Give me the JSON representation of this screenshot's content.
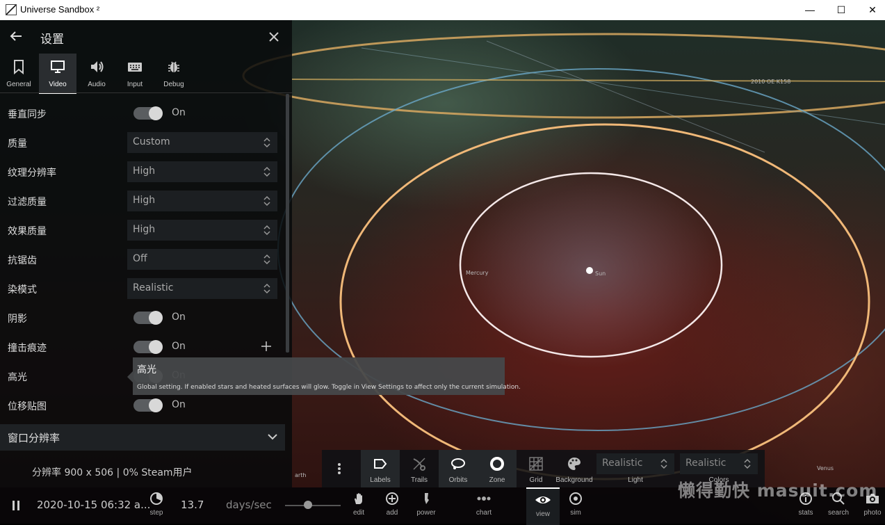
{
  "window": {
    "title": "Universe Sandbox ²",
    "minimize": "—",
    "maximize": "☐",
    "close": "✕"
  },
  "panel": {
    "title": "设置",
    "tabs": [
      {
        "label": "General",
        "icon": "bookmark-icon"
      },
      {
        "label": "Video",
        "icon": "monitor-icon"
      },
      {
        "label": "Audio",
        "icon": "speaker-icon"
      },
      {
        "label": "Input",
        "icon": "keyboard-icon"
      },
      {
        "label": "Debug",
        "icon": "bug-icon"
      }
    ],
    "active_tab": "Video",
    "settings": [
      {
        "label": "垂直同步",
        "type": "toggle",
        "value": "On"
      },
      {
        "label": "质量",
        "type": "select",
        "value": "Custom"
      },
      {
        "label": "纹理分辨率",
        "type": "select",
        "value": "High"
      },
      {
        "label": "过滤质量",
        "type": "select",
        "value": "High"
      },
      {
        "label": "效果质量",
        "type": "select",
        "value": "High"
      },
      {
        "label": "抗锯齿",
        "type": "select",
        "value": "Off"
      },
      {
        "label": "染模式",
        "type": "select",
        "value": "Realistic"
      },
      {
        "label": "阴影",
        "type": "toggle",
        "value": "On"
      },
      {
        "label": "撞击痕迹",
        "type": "toggle",
        "value": "On"
      },
      {
        "label": "高光",
        "type": "toggle",
        "value": "On"
      },
      {
        "label": "位移贴图",
        "type": "toggle",
        "value": "On"
      }
    ],
    "section": {
      "title": "窗口分辨率"
    },
    "resolution_text": "分辨率 900 x 506 | 0% Steam用户"
  },
  "tooltip": {
    "title": "高光",
    "body": "Global setting. If enabled stars and heated surfaces will glow. Toggle in View Settings to affect only the current simulation."
  },
  "scene": {
    "labels": {
      "mercury": "Mercury",
      "sun": "Sun",
      "venus": "Venus",
      "asteroid": "2010 OE K158",
      "earth": "arth"
    }
  },
  "toolbar": {
    "buttons": [
      {
        "label": "Labels",
        "icon": "tag-icon",
        "active": true
      },
      {
        "label": "Trails",
        "icon": "trails-icon",
        "active": false
      },
      {
        "label": "Orbits",
        "icon": "orbit-icon",
        "active": true
      },
      {
        "label": "Zone",
        "icon": "ring-icon",
        "active": true
      },
      {
        "label": "Grid",
        "icon": "grid-icon",
        "active": false
      },
      {
        "label": "Background",
        "icon": "palette-icon",
        "active": false
      }
    ],
    "light": {
      "value": "Realistic",
      "label": "Light"
    },
    "colors": {
      "value": "Realistic",
      "label": "Colors"
    }
  },
  "bottombar": {
    "date": "2020-10-15 06:32 a...",
    "step_label": "step",
    "speed_value": "13.7",
    "speed_unit": "days/sec",
    "items": [
      {
        "label": "edit",
        "icon": "hand-icon"
      },
      {
        "label": "add",
        "icon": "add-circle-icon"
      },
      {
        "label": "power",
        "icon": "power-icon"
      },
      {
        "label": "chart",
        "icon": "chart-icon"
      },
      {
        "label": "view",
        "icon": "eye-icon"
      },
      {
        "label": "sim",
        "icon": "sim-icon"
      }
    ],
    "right_items": [
      {
        "label": "stats",
        "icon": "info-icon"
      },
      {
        "label": "search",
        "icon": "search-icon"
      },
      {
        "label": "photo",
        "icon": "camera-icon"
      }
    ]
  },
  "watermark": "懒得勤快  masuit.com"
}
